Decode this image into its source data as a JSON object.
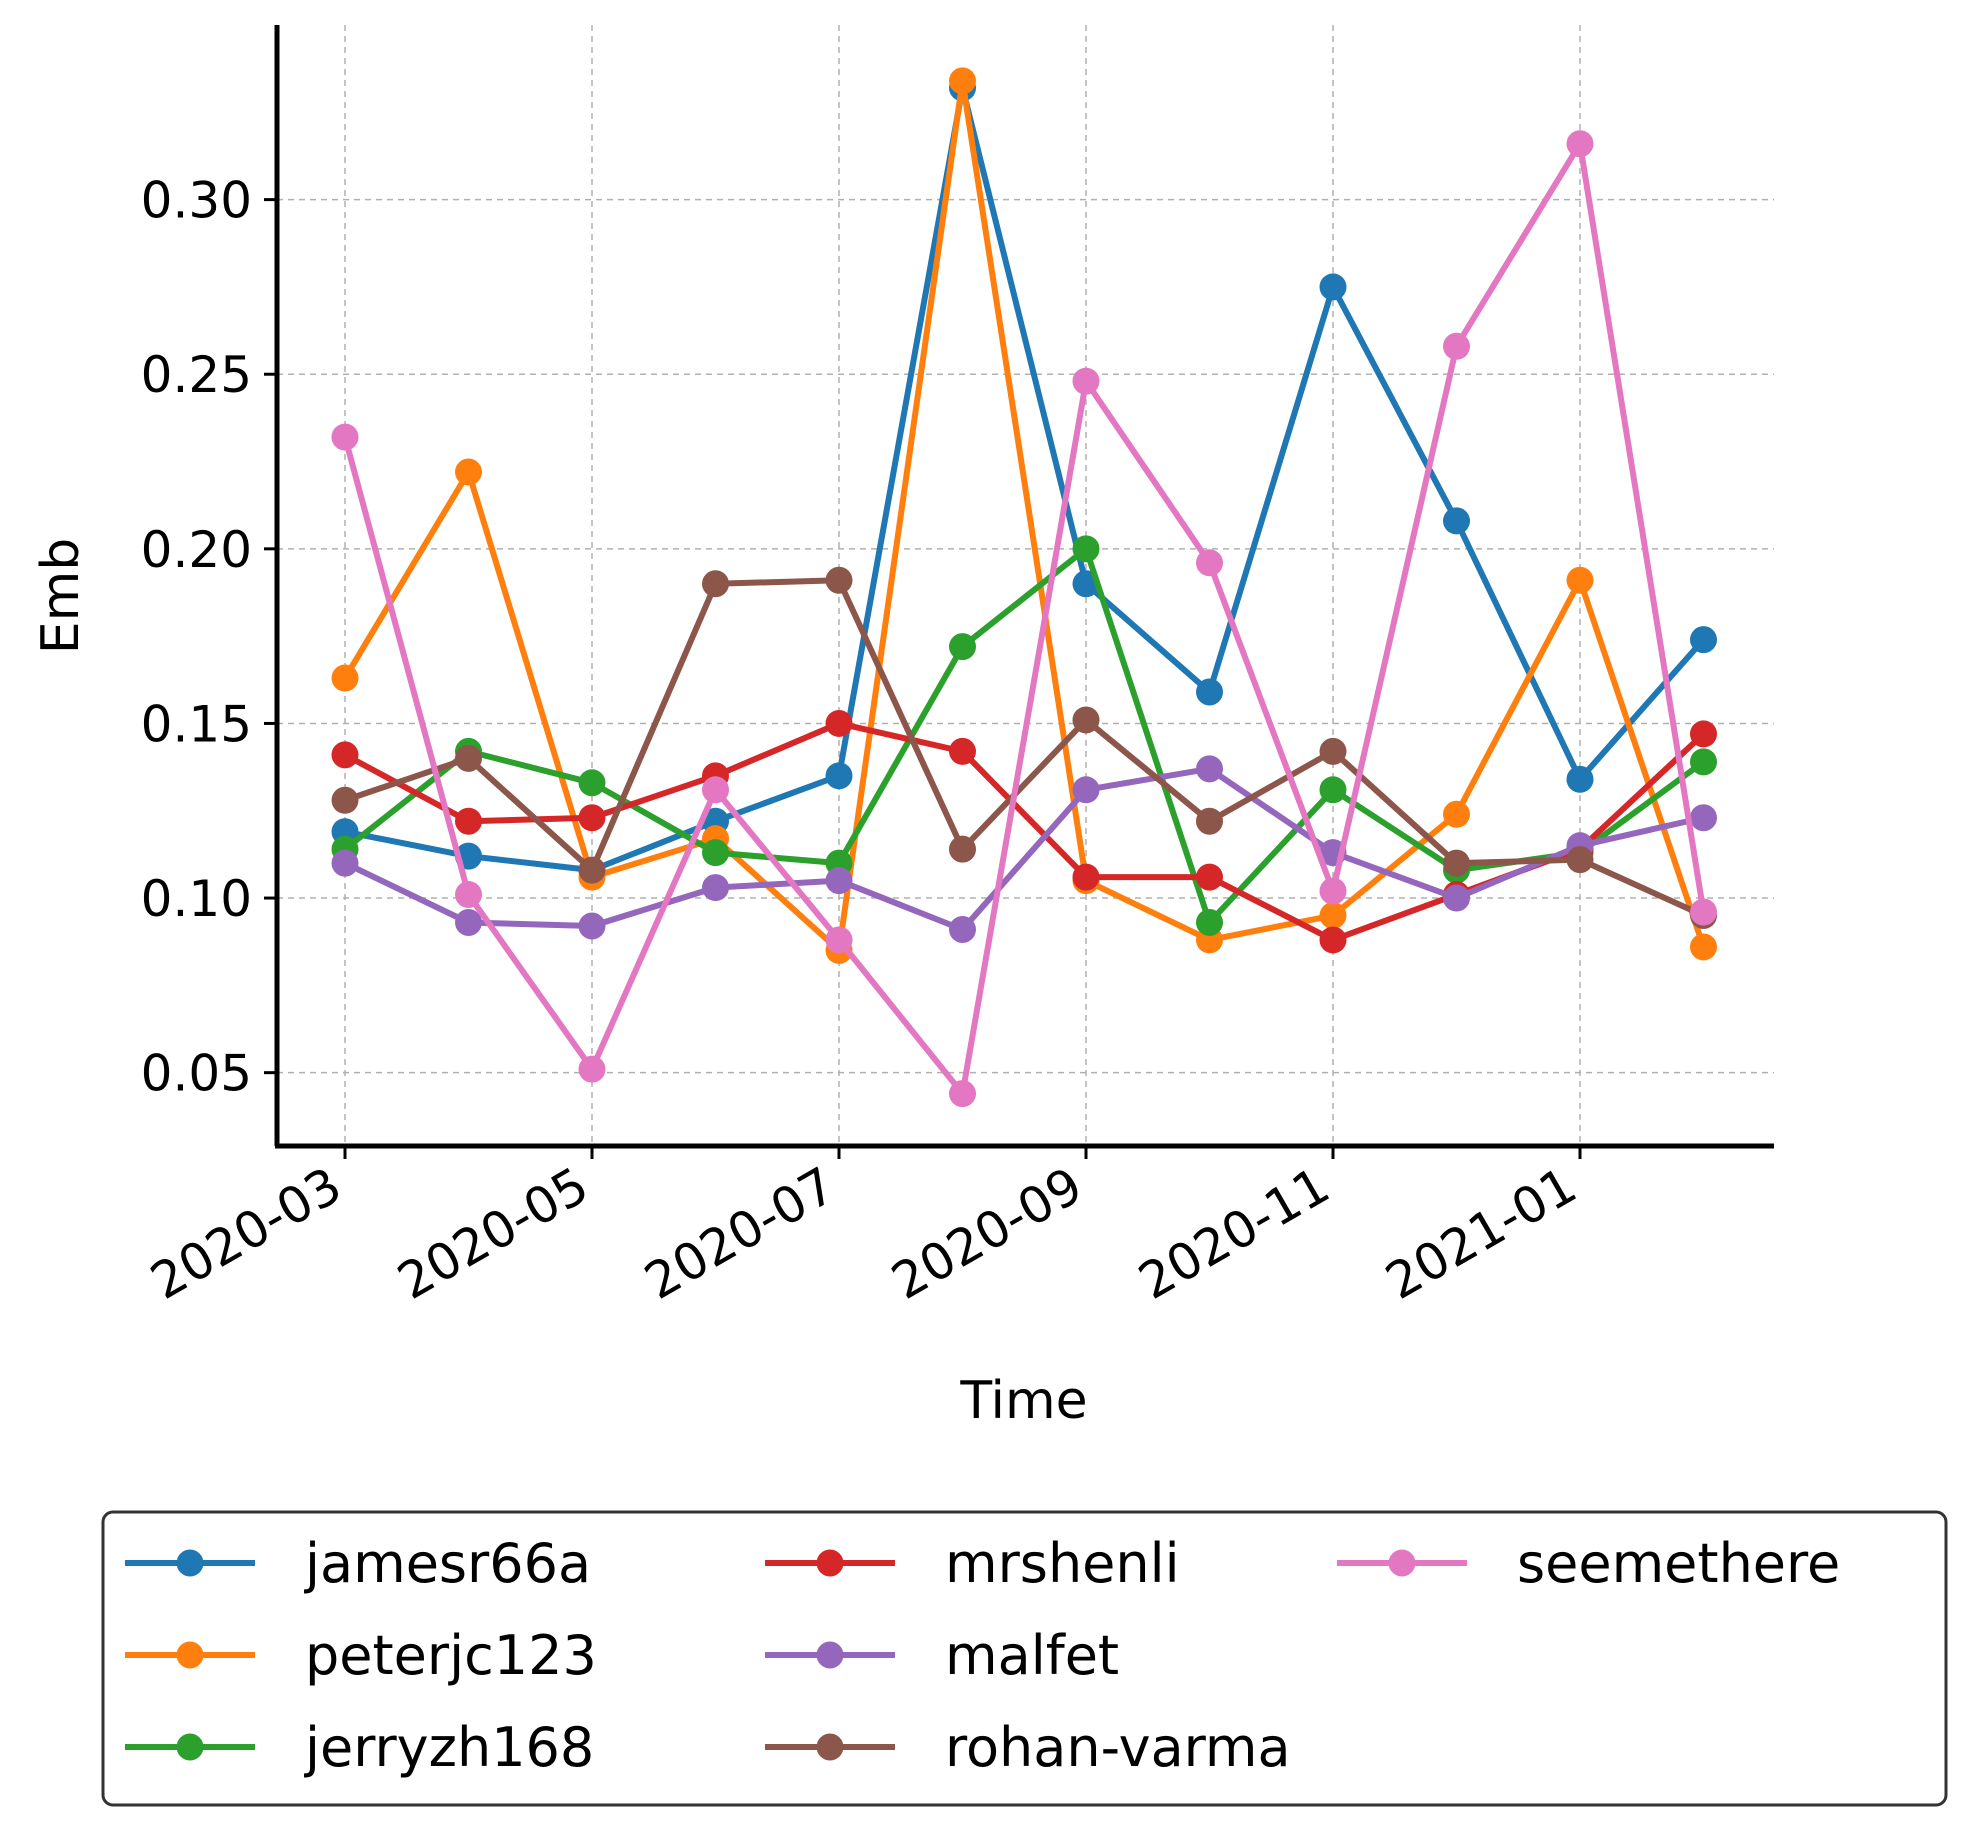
{
  "chart_data": {
    "type": "line",
    "title": "",
    "xlabel": "Time",
    "ylabel": "Emb",
    "x": [
      "2020-03",
      "2020-04",
      "2020-05",
      "2020-06",
      "2020-07",
      "2020-08",
      "2020-09",
      "2020-10",
      "2020-11",
      "2020-12",
      "2021-01",
      "2021-02"
    ],
    "xticks": [
      "2020-03",
      "2020-05",
      "2020-07",
      "2020-09",
      "2020-11",
      "2021-01"
    ],
    "yticks": [
      "0.05",
      "0.10",
      "0.15",
      "0.20",
      "0.25",
      "0.30"
    ],
    "ylim": [
      0.029,
      0.35
    ],
    "grid": true,
    "legend_position": "bottom",
    "series": [
      {
        "name": "jamesr66a",
        "color": "#1f77b4",
        "values": [
          0.119,
          0.112,
          0.108,
          0.122,
          0.135,
          0.332,
          0.19,
          0.159,
          0.275,
          0.208,
          0.134,
          0.174
        ]
      },
      {
        "name": "peterjc123",
        "color": "#ff7f0e",
        "values": [
          0.163,
          0.222,
          0.106,
          0.117,
          0.085,
          0.334,
          0.105,
          0.088,
          0.095,
          0.124,
          0.191,
          0.086
        ]
      },
      {
        "name": "jerryzh168",
        "color": "#2ca02c",
        "values": [
          0.114,
          0.142,
          0.133,
          0.113,
          0.11,
          0.172,
          0.2,
          0.093,
          0.131,
          0.108,
          0.113,
          0.139
        ]
      },
      {
        "name": "mrshenli",
        "color": "#d62728",
        "values": [
          0.141,
          0.122,
          0.123,
          0.135,
          0.15,
          0.142,
          0.106,
          0.106,
          0.088,
          0.101,
          0.114,
          0.147
        ]
      },
      {
        "name": "malfet",
        "color": "#9467bd",
        "values": [
          0.11,
          0.093,
          0.092,
          0.103,
          0.105,
          0.091,
          0.131,
          0.137,
          0.113,
          0.1,
          0.115,
          0.123
        ]
      },
      {
        "name": "rohan-varma",
        "color": "#8c564b",
        "values": [
          0.128,
          0.14,
          0.108,
          0.19,
          0.191,
          0.114,
          0.151,
          0.122,
          0.142,
          0.11,
          0.111,
          0.095
        ]
      },
      {
        "name": "seemethere",
        "color": "#e377c2",
        "values": [
          0.232,
          0.101,
          0.051,
          0.131,
          0.088,
          0.044,
          0.248,
          0.196,
          0.102,
          0.258,
          0.316,
          0.096
        ]
      }
    ]
  }
}
